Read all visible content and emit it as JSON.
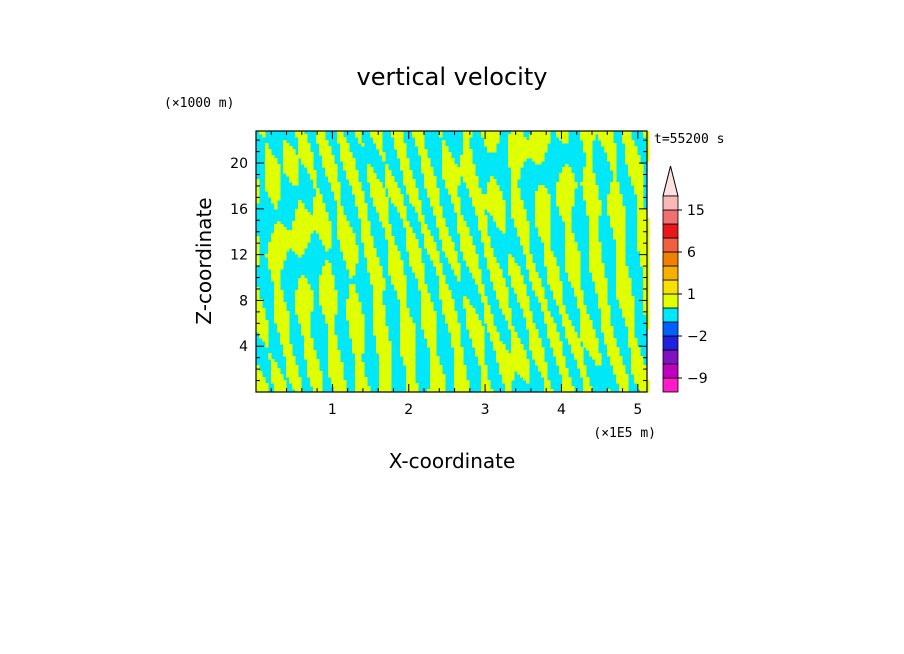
{
  "chart_data": {
    "type": "heatmap",
    "title": "vertical velocity",
    "xlabel": "X-coordinate",
    "ylabel": "Z-coordinate",
    "x_unit": "(×1E5 m)",
    "y_unit": "(×1000 m)",
    "time_label": "t=55200 s",
    "xlim": [
      0,
      5.12
    ],
    "ylim": [
      0,
      22.8
    ],
    "x_ticks": [
      1,
      2,
      3,
      4,
      5
    ],
    "y_ticks": [
      4,
      8,
      12,
      16,
      20
    ],
    "field_colors": {
      "negative": "#00e8f8",
      "positive": "#e0ff00"
    },
    "colorbar": {
      "labels": [
        "15",
        "6",
        "1",
        "−2",
        "−9"
      ],
      "levels": [
        -12,
        -9,
        -6,
        -4,
        -2,
        -1,
        0,
        1,
        2,
        4,
        6,
        9,
        12,
        15,
        20
      ],
      "colors": [
        "#ff1cc8",
        "#c000c0",
        "#8010c0",
        "#2020e0",
        "#0060ff",
        "#00e8f8",
        "#e0ff00",
        "#f8e000",
        "#f8b000",
        "#f08000",
        "#f06040",
        "#e81818",
        "#f07070",
        "#f8b8b8"
      ],
      "extend": "max"
    }
  }
}
